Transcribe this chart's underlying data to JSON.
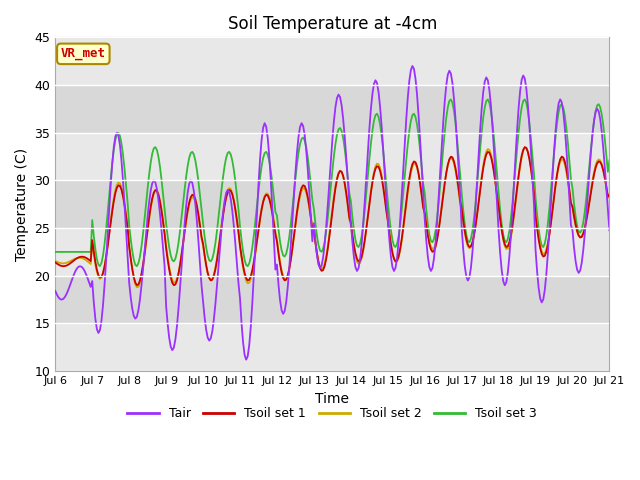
{
  "title": "Soil Temperature at -4cm",
  "xlabel": "Time",
  "ylabel": "Temperature (C)",
  "ylim": [
    10,
    45
  ],
  "tair_color": "#9b30ff",
  "tsoil1_color": "#cc0000",
  "tsoil2_color": "#ccaa00",
  "tsoil3_color": "#33bb33",
  "legend_entries": [
    "Tair",
    "Tsoil set 1",
    "Tsoil set 2",
    "Tsoil set 3"
  ],
  "annotation_text": "VR_met",
  "annotation_color": "#cc0000",
  "annotation_bg": "#ffffcc",
  "annotation_edge": "#aa8800",
  "tick_labels": [
    "Jul 6",
    "Jul 7",
    "Jul 8",
    "Jul 9",
    "Jul 10",
    "Jul 11",
    "Jul 12",
    "Jul 13",
    "Jul 14",
    "Jul 15",
    "Jul 16",
    "Jul 17",
    "Jul 18",
    "Jul 19",
    "Jul 20",
    "Jul 21"
  ],
  "fig_bg": "#ffffff",
  "band_colors": [
    "#e8e8e8",
    "#d8d8d8"
  ],
  "grid_line_color": "#ffffff"
}
